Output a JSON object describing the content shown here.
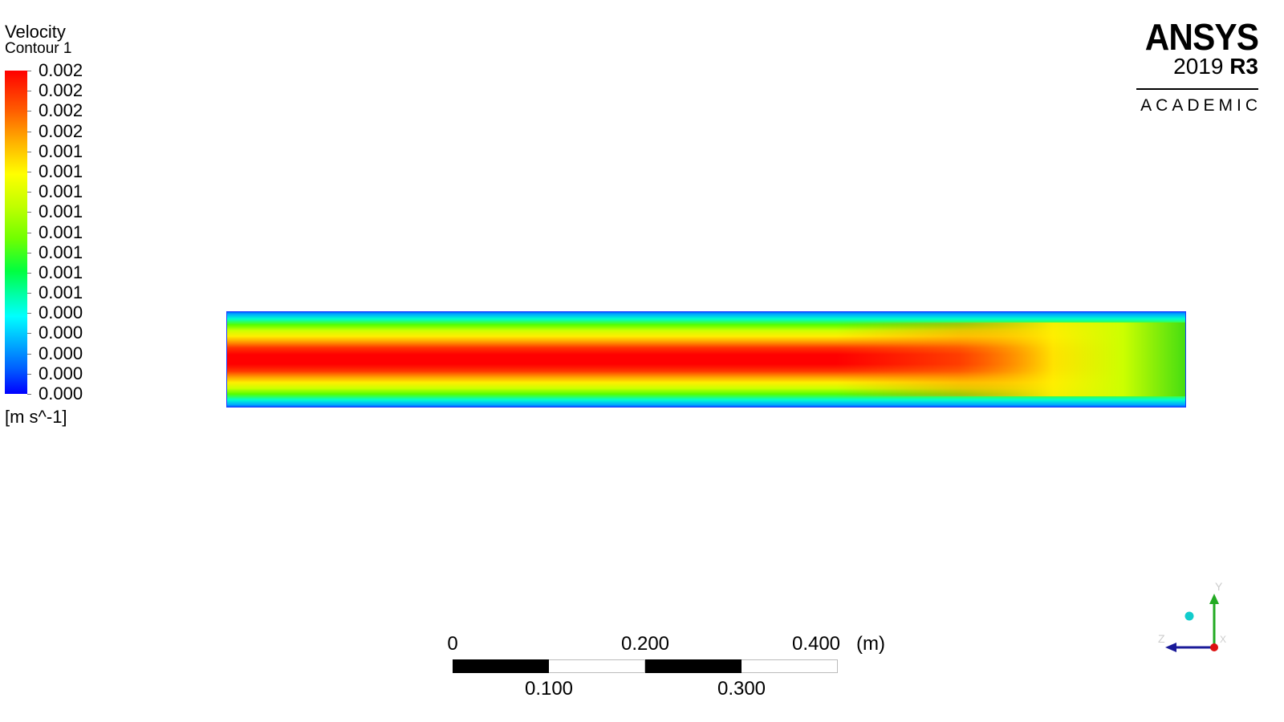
{
  "legend": {
    "title": "Velocity",
    "subtitle": "Contour 1",
    "labels": [
      "0.002",
      "0.002",
      "0.002",
      "0.002",
      "0.001",
      "0.001",
      "0.001",
      "0.001",
      "0.001",
      "0.001",
      "0.001",
      "0.001",
      "0.000",
      "0.000",
      "0.000",
      "0.000",
      "0.000"
    ],
    "unit": "[m s^-1]",
    "colormap": [
      "#ff0000",
      "#ff5a00",
      "#ffb000",
      "#ffff00",
      "#c0ff00",
      "#70ff00",
      "#00ff40",
      "#00ffb0",
      "#00ffff",
      "#00b0ff",
      "#0060ff",
      "#0000ff"
    ]
  },
  "logo": {
    "brand": "ANSYS",
    "version_year": "2019",
    "version_release": "R3",
    "edition": "ACADEMIC"
  },
  "scale": {
    "top_labels": [
      "0",
      "0.200",
      "0.400"
    ],
    "bottom_labels": [
      "0.100",
      "0.300"
    ],
    "unit": "(m)"
  },
  "triad": {
    "axes": [
      "Y",
      "Z",
      "X"
    ],
    "colors": {
      "y": "#22aa22",
      "z": "#1a1a99",
      "x": "#dd1111",
      "center": "#11cccc"
    }
  }
}
